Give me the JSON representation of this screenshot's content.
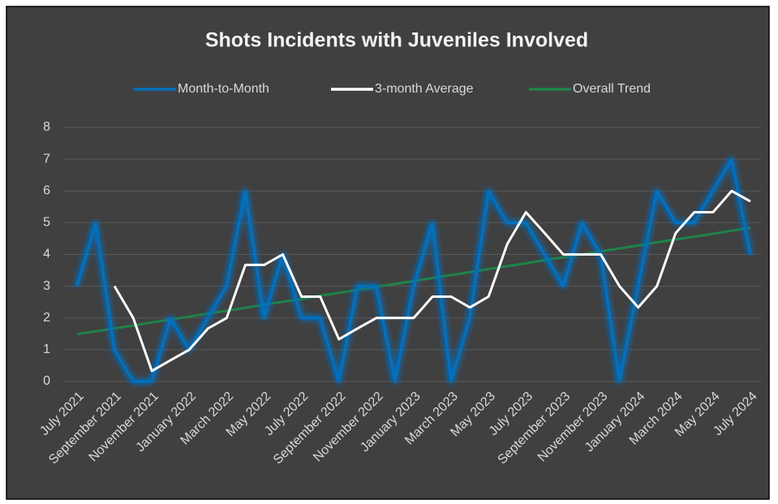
{
  "chart_data": {
    "type": "line",
    "title": "Shots Incidents with Juveniles Involved",
    "categories": [
      "July 2021",
      null,
      "September 2021",
      null,
      "November 2021",
      null,
      "January 2022",
      null,
      "March 2022",
      null,
      "May 2022",
      null,
      "July 2022",
      null,
      "September 2022",
      null,
      "November 2022",
      null,
      "January 2023",
      null,
      "March 2023",
      null,
      "May 2023",
      null,
      "July 2023",
      null,
      "September 2023",
      null,
      "November 2023",
      null,
      "January 2024",
      null,
      "March 2024",
      null,
      "May 2024",
      null,
      "July 2024"
    ],
    "series": [
      {
        "name": "Month-to-Month",
        "color": "#0070c0",
        "values": [
          3,
          5,
          1,
          0,
          0,
          2,
          1,
          2,
          3,
          6,
          2,
          4,
          2,
          2,
          0,
          3,
          3,
          0,
          3,
          5,
          0,
          2,
          6,
          5,
          5,
          4,
          3,
          5,
          4,
          0,
          3,
          6,
          5,
          5,
          6,
          7,
          4
        ]
      },
      {
        "name": "3-month Average",
        "color": "#ffffff",
        "values": [
          null,
          null,
          3,
          2,
          0.33,
          0.67,
          1,
          1.67,
          2,
          3.67,
          3.67,
          4,
          2.67,
          2.67,
          1.33,
          1.67,
          2,
          2,
          2,
          2.67,
          2.67,
          2.33,
          2.67,
          4.33,
          5.33,
          4.67,
          4,
          4,
          4,
          3,
          2.33,
          3,
          4.67,
          5.33,
          5.33,
          6,
          5.67
        ]
      },
      {
        "name": "Overall Trend",
        "color": "#1e8449",
        "values": [
          1.49,
          1.58,
          1.67,
          1.76,
          1.86,
          1.95,
          2.04,
          2.14,
          2.23,
          2.32,
          2.42,
          2.51,
          2.6,
          2.7,
          2.79,
          2.88,
          2.98,
          3.07,
          3.16,
          3.26,
          3.35,
          3.44,
          3.54,
          3.63,
          3.72,
          3.82,
          3.91,
          4,
          4.1,
          4.19,
          4.28,
          4.38,
          4.47,
          4.56,
          4.65,
          4.75,
          4.84
        ]
      }
    ],
    "ylim": [
      0,
      8
    ],
    "yticks": [
      0,
      1,
      2,
      3,
      4,
      5,
      6,
      7,
      8
    ],
    "grid": true,
    "legend": "top"
  }
}
